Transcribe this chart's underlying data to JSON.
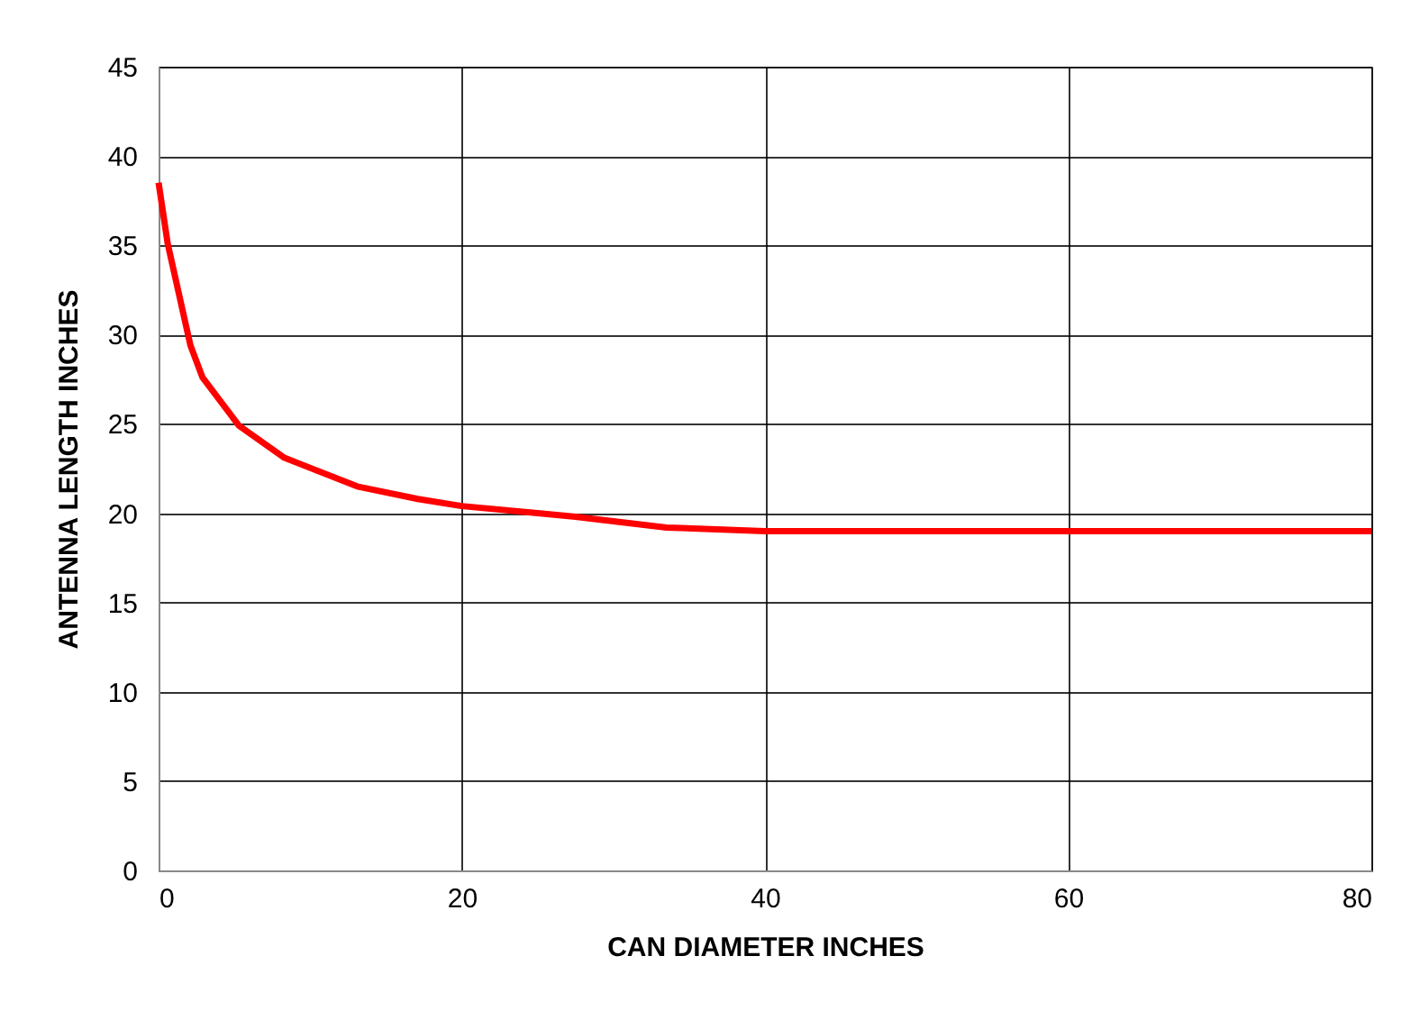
{
  "chart_data": {
    "type": "line",
    "xlabel": "CAN DIAMETER INCHES",
    "ylabel": "ANTENNA LENGTH INCHES",
    "x": [
      0,
      0.6,
      2.1,
      2.9,
      5.3,
      8.3,
      13.1,
      17.1,
      20,
      25,
      27.5,
      33.5,
      40,
      42,
      60,
      80
    ],
    "series": [
      {
        "color": "#ff0000",
        "values": [
          38.5,
          35.1,
          29.4,
          27.6,
          24.9,
          23.1,
          21.5,
          20.8,
          20.4,
          20.0,
          19.8,
          19.2,
          19.0,
          19.0,
          19.0,
          19.0
        ]
      }
    ],
    "xlim": [
      0,
      80
    ],
    "xticks": [
      0,
      20,
      40,
      60,
      80
    ],
    "ylim": [
      0,
      45
    ],
    "yticks": [
      0,
      5,
      10,
      15,
      20,
      25,
      30,
      35,
      40,
      45
    ],
    "grid": true,
    "marker": "none",
    "line_style": "solid"
  }
}
